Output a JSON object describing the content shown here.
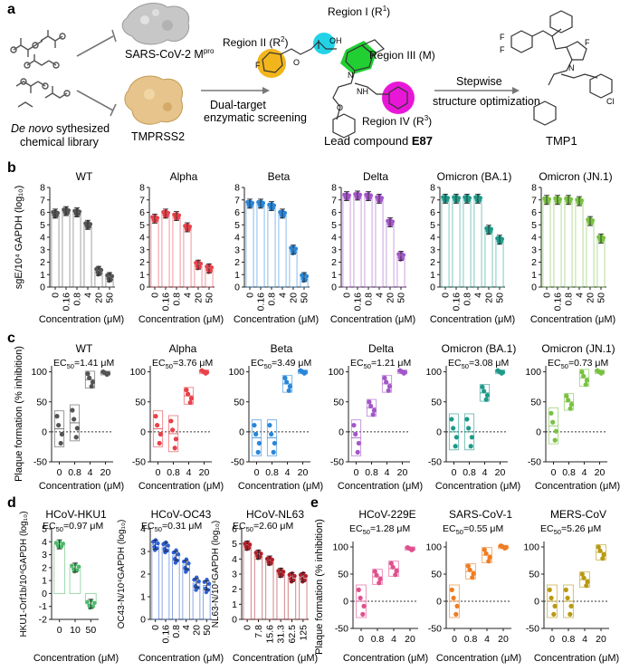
{
  "panel_labels": {
    "a": "a",
    "b": "b",
    "c": "c",
    "d": "d",
    "e": "e"
  },
  "panel_a": {
    "library_label_italic": "De novo",
    "library_label_rest": " sythesized",
    "library_label_line2": "chemical library",
    "target1": "SARS-CoV-2 M",
    "target1_sup": "pro",
    "target2": "TMPRSS2",
    "screen_line1": "Dual-target",
    "screen_line2": "enzymatic screening",
    "region1": "Region I (R",
    "region1_sup": "1",
    "region2": "Region II (R",
    "region2_sup": "2",
    "region3": "Region III (M)",
    "region4": "Region IV (R",
    "region4_sup": "3",
    "lead_label": "Lead compound ",
    "lead_bold": "E87",
    "opt_line1": "Stepwise",
    "opt_line2": "structure optimization",
    "final": "TMP1",
    "atoms": {
      "f": "F",
      "oh": "OH",
      "o": "O",
      "n": "N",
      "h": "H",
      "nh": "NH",
      "cl": "Cl",
      "hn": "HN"
    }
  },
  "common": {
    "close_paren": ")",
    "xlabel": "Concentration (μM)",
    "ec50_prefix": "EC",
    "ec50_sub": "50",
    "b_ylabel": "sgE/10⁴ GAPDH (log₁₀)",
    "c_ylabel": "Plaque formation (% inhibition)",
    "e_ylabel": "Plaque formation (% inhibition)"
  },
  "chart_data": [
    {
      "panel": "b",
      "type": "bar",
      "categories": [
        "0",
        "0.16",
        "0.8",
        "4",
        "20",
        "50"
      ],
      "ylim": [
        0,
        8
      ],
      "yticks": [
        0,
        1,
        2,
        3,
        4,
        5,
        6,
        7,
        8
      ],
      "series": [
        {
          "name": "WT",
          "color": "#555555",
          "values": [
            5.9,
            6.1,
            6.0,
            5.0,
            1.3,
            0.8
          ]
        },
        {
          "name": "Alpha",
          "color": "#e8414a",
          "values": [
            5.5,
            5.9,
            5.7,
            4.8,
            1.8,
            1.5
          ]
        },
        {
          "name": "Beta",
          "color": "#2a86d8",
          "values": [
            6.7,
            6.7,
            6.5,
            5.9,
            3.0,
            0.8
          ]
        },
        {
          "name": "Delta",
          "color": "#a356c9",
          "values": [
            7.3,
            7.35,
            7.3,
            7.1,
            5.2,
            2.5
          ]
        },
        {
          "name": "Omicron (BA.1)",
          "color": "#1e9a8a",
          "values": [
            7.1,
            7.1,
            7.1,
            7.1,
            4.6,
            3.8
          ]
        },
        {
          "name": "Omicron (JN.1)",
          "color": "#79c143",
          "values": [
            7.0,
            7.0,
            7.0,
            6.9,
            5.3,
            3.9
          ]
        }
      ]
    },
    {
      "panel": "c",
      "type": "box",
      "categories": [
        "0",
        "0.8",
        "4",
        "20"
      ],
      "ylim": [
        -50,
        110
      ],
      "yticks": [
        -50,
        0,
        50,
        100
      ],
      "series": [
        {
          "name": "WT",
          "ec50": "=1.41 μM",
          "color": "#555555",
          "values": [
            5,
            15,
            87,
            98
          ]
        },
        {
          "name": "Alpha",
          "ec50": "=3.76 μM",
          "color": "#e8414a",
          "values": [
            5,
            -3,
            60,
            100
          ]
        },
        {
          "name": "Beta",
          "ec50": "=3.49 μM",
          "color": "#2a86d8",
          "values": [
            -10,
            -10,
            80,
            100
          ]
        },
        {
          "name": "Delta",
          "ec50": "=1.21 μM",
          "color": "#a356c9",
          "values": [
            -10,
            40,
            80,
            100
          ]
        },
        {
          "name": "Omicron (BA.1)",
          "ec50": "=3.08 μM",
          "color": "#1e9a8a",
          "values": [
            0,
            0,
            65,
            100
          ]
        },
        {
          "name": "Omicron (JN.1)",
          "ec50": "=0.73 μM",
          "color": "#79c143",
          "values": [
            10,
            50,
            90,
            100
          ]
        }
      ]
    },
    {
      "panel": "d",
      "type": "bar",
      "series": [
        {
          "name": "HCoV-HKU1",
          "ec50": "=0.97 μM",
          "color": "#4cb86a",
          "ylabel": "HKU1-Orf1b/10⁴GAPDH (log₁₀)",
          "categories": [
            "0",
            "10",
            "50"
          ],
          "values": [
            3.8,
            2.0,
            -0.8
          ],
          "ylim": [
            -2,
            5
          ],
          "yticks": [
            -2,
            -1,
            0,
            1,
            2,
            3,
            4,
            5
          ]
        },
        {
          "name": "HCoV-OC43",
          "ec50": "=0.31 μM",
          "color": "#2d5fd6",
          "ylabel": "OC43-N/10⁴GAPDH (log₁₀)",
          "categories": [
            "0",
            "0.16",
            "0.8",
            "4",
            "20",
            "50"
          ],
          "values": [
            3.3,
            3.2,
            2.8,
            2.4,
            1.6,
            1.5
          ],
          "ylim": [
            0,
            4
          ],
          "yticks": [
            0,
            1,
            2,
            3,
            4
          ]
        },
        {
          "name": "HCoV-NL63",
          "ec50": "=2.60 μM",
          "color": "#b2202a",
          "ylabel": "NL63-N/10⁴GAPDH (log₁₀)",
          "categories": [
            "0",
            "7.8",
            "15.6",
            "31.3",
            "62.5",
            "125"
          ],
          "values": [
            4.9,
            4.3,
            3.9,
            3.1,
            2.8,
            2.8
          ],
          "ylim": [
            0,
            6
          ],
          "yticks": [
            0,
            1,
            2,
            3,
            4,
            5,
            6
          ]
        }
      ]
    },
    {
      "panel": "e",
      "type": "box",
      "categories": [
        "0",
        "0.8",
        "4",
        "20"
      ],
      "ylim": [
        -50,
        110
      ],
      "yticks": [
        -50,
        0,
        50,
        100
      ],
      "series": [
        {
          "name": "HCoV-229E",
          "ec50": "=1.28 μM",
          "color": "#e0508f",
          "values": [
            0,
            45,
            60,
            97
          ]
        },
        {
          "name": "SARS-CoV-1",
          "ec50": "=0.55 μM",
          "color": "#ef7d22",
          "values": [
            0,
            55,
            85,
            100
          ]
        },
        {
          "name": "MERS-CoV",
          "ec50": "=5.26 μM",
          "color": "#b89a12",
          "values": [
            0,
            0,
            40,
            90
          ]
        }
      ]
    }
  ]
}
